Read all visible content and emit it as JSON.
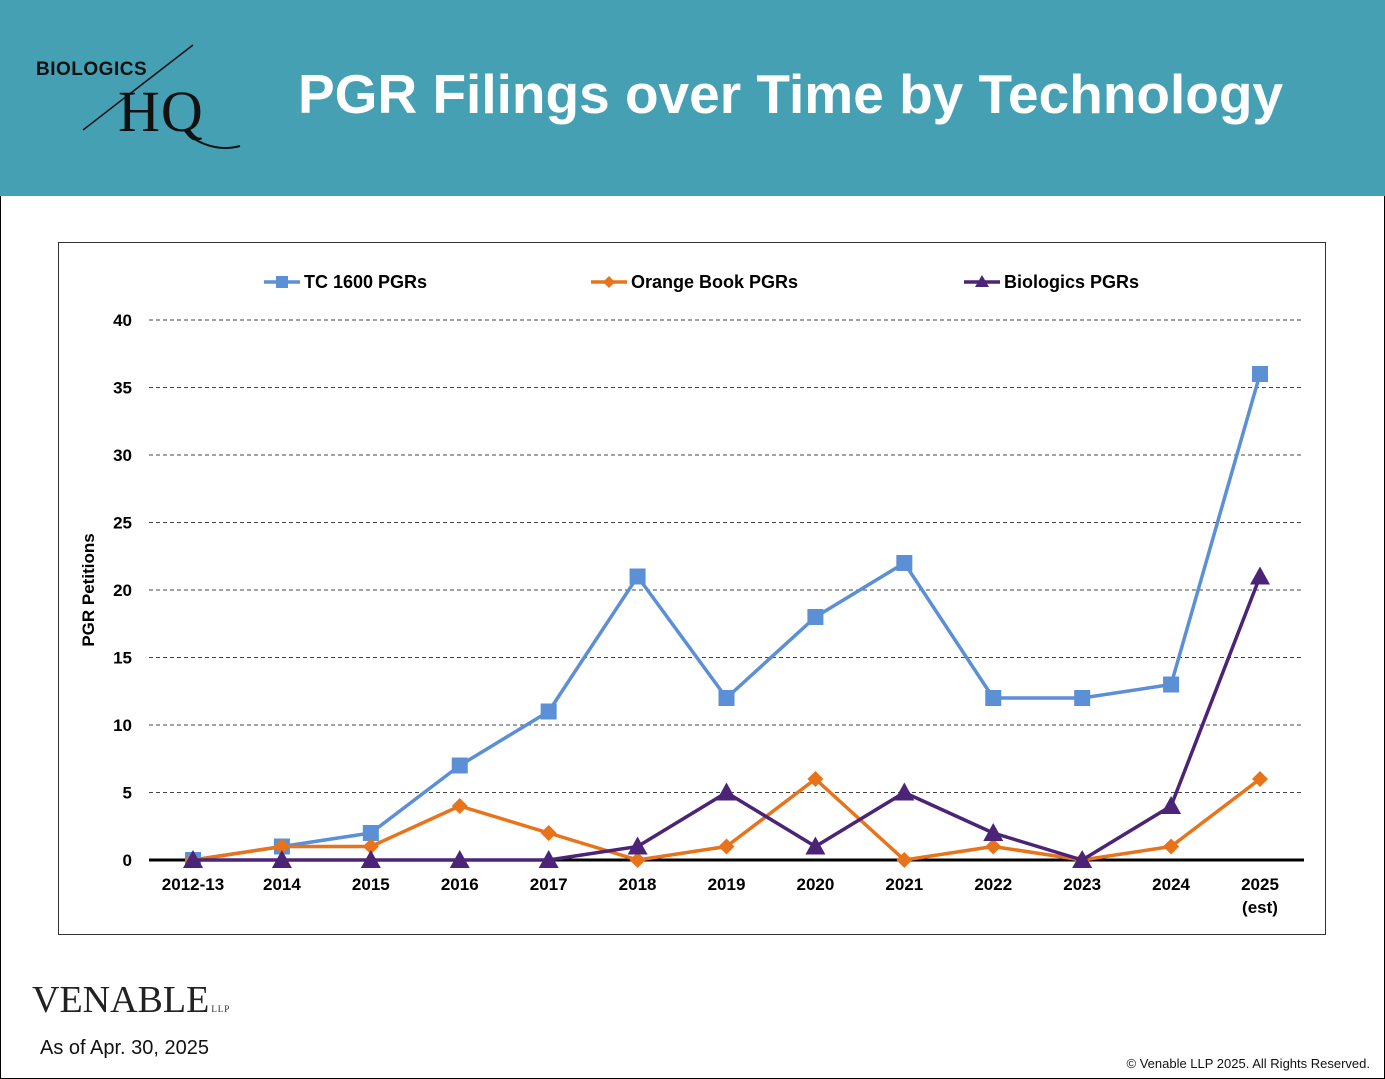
{
  "header": {
    "title": "PGR Filings over Time by Technology",
    "logo_top": "BIOLOGICS",
    "logo_bottom": "HQ",
    "background_color": "#45a0b4"
  },
  "chart_data": {
    "type": "line",
    "title": "",
    "xlabel": "",
    "ylabel": "PGR Petitions",
    "ylim": [
      0,
      40
    ],
    "yticks": [
      0,
      5,
      10,
      15,
      20,
      25,
      30,
      35,
      40
    ],
    "grid": "horizontal dashed",
    "legend_position": "top",
    "categories": [
      "2012-13",
      "2014",
      "2015",
      "2016",
      "2017",
      "2018",
      "2019",
      "2020",
      "2021",
      "2022",
      "2023",
      "2024",
      "2025 (est)"
    ],
    "series": [
      {
        "name": "TC 1600 PGRs",
        "color": "#5b8fd6",
        "marker": "square",
        "values": [
          0,
          1,
          2,
          7,
          11,
          21,
          12,
          18,
          22,
          12,
          12,
          13,
          36
        ]
      },
      {
        "name": "Orange Book PGRs",
        "color": "#e8731a",
        "marker": "diamond",
        "values": [
          0,
          1,
          1,
          4,
          2,
          0,
          1,
          6,
          0,
          1,
          0,
          1,
          6
        ]
      },
      {
        "name": "Biologics PGRs",
        "color": "#4b2477",
        "marker": "triangle",
        "values": [
          0,
          0,
          0,
          0,
          0,
          1,
          5,
          1,
          5,
          2,
          0,
          4,
          21
        ]
      }
    ]
  },
  "footer": {
    "brand": "VENABLE",
    "brand_suffix": "LLP",
    "as_of": "As of Apr. 30, 2025",
    "copyright": "© Venable LLP 2025. All Rights Reserved."
  }
}
